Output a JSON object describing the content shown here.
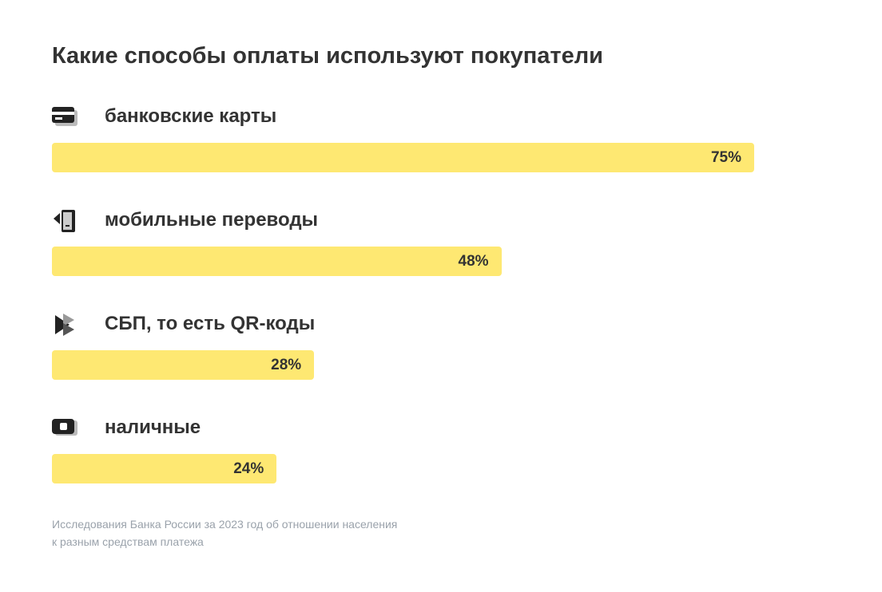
{
  "chart_data": {
    "type": "bar",
    "orientation": "horizontal",
    "title": "Какие способы оплаты используют покупатели",
    "categories": [
      "банковские карты",
      "мобильные переводы",
      "СБП, то есть QR-коды",
      "наличные"
    ],
    "values": [
      75,
      48,
      28,
      24
    ],
    "value_labels": [
      "75%",
      "48%",
      "28%",
      "24%"
    ],
    "color": "#fee872",
    "source": [
      "Исследования Банка России за 2023 год об отношении населения",
      "к разным средствам платежа"
    ]
  }
}
